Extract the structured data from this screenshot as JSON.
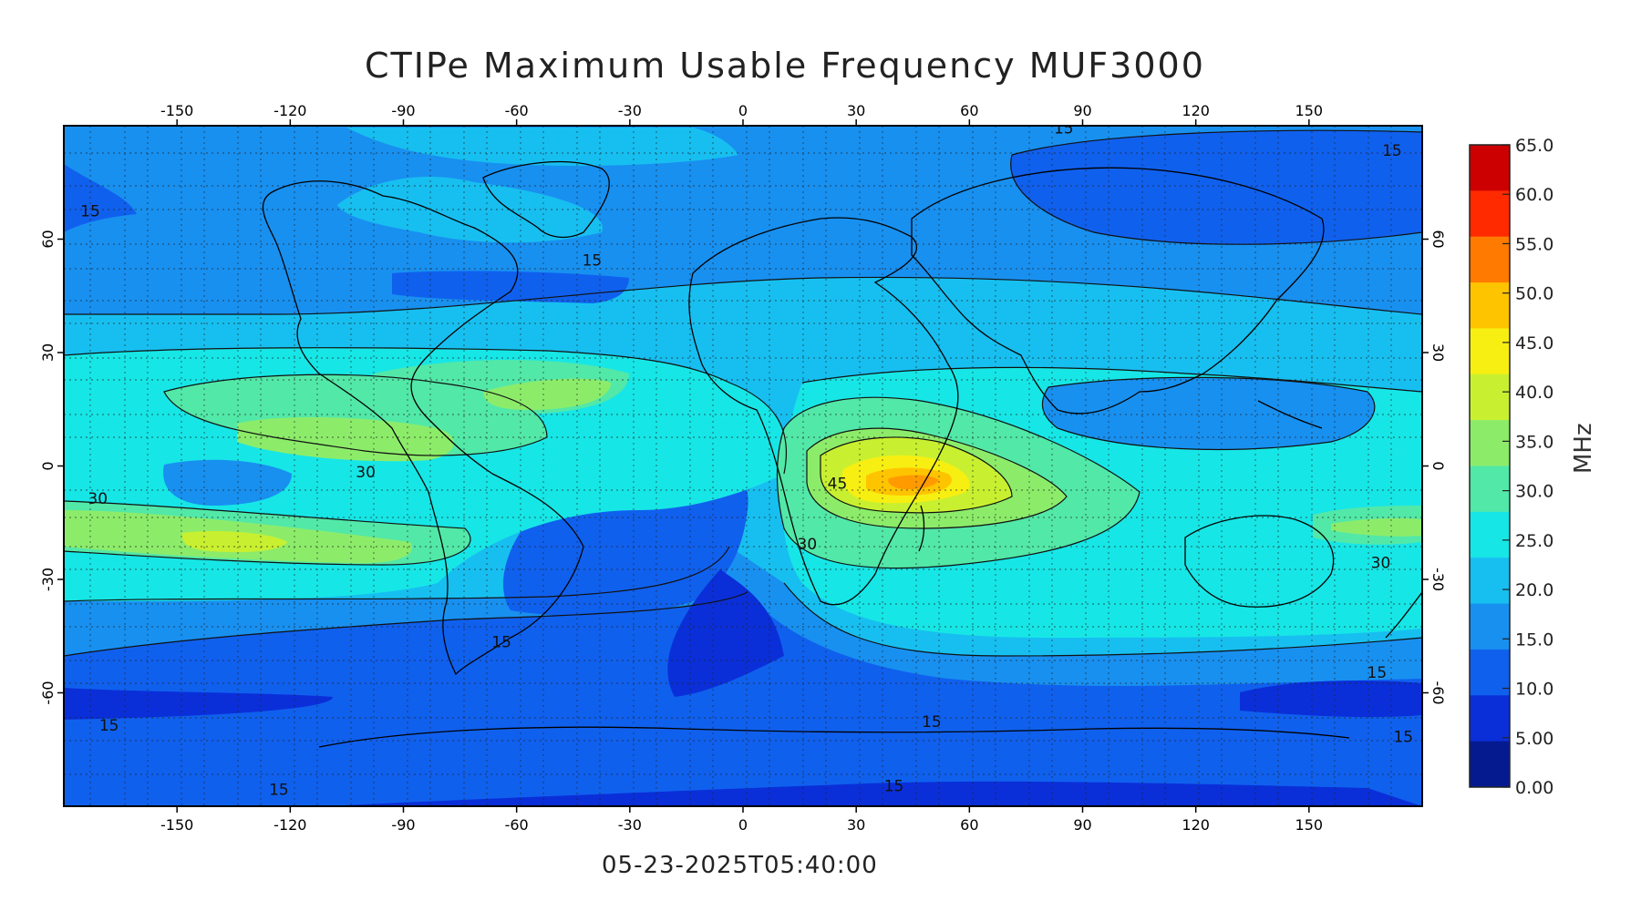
{
  "title": "CTIPe Maximum Usable Frequency MUF3000",
  "timestamp": "05-23-2025T05:40:00",
  "colorbar": {
    "unit": "MHz",
    "ticks": [
      "65.0",
      "60.0",
      "55.0",
      "50.0",
      "45.0",
      "40.0",
      "35.0",
      "30.0",
      "25.0",
      "20.0",
      "15.0",
      "10.0",
      "5.00",
      "0.00"
    ],
    "stops": [
      "#cc0000",
      "#ff2a00",
      "#ff7a00",
      "#ffc400",
      "#f7ef12",
      "#c8f030",
      "#8cec6a",
      "#52e8a8",
      "#17e6e6",
      "#17bff0",
      "#1890f0",
      "#1060ee",
      "#0a2fd8",
      "#061a8f"
    ]
  },
  "map": {
    "lon_ticks": [
      "-150",
      "-120",
      "-90",
      "-60",
      "-30",
      "0",
      "30",
      "60",
      "90",
      "120",
      "150"
    ],
    "lat_ticks": [
      "60",
      "30",
      "0",
      "-30",
      "-60"
    ],
    "contour_labels": [
      {
        "text": "15",
        "lon": -173,
        "lat": 66
      },
      {
        "text": "15",
        "lon": -40,
        "lat": 53
      },
      {
        "text": "15",
        "lon": 85,
        "lat": 88
      },
      {
        "text": "15",
        "lon": 172,
        "lat": 82
      },
      {
        "text": "30",
        "lon": -100,
        "lat": -3
      },
      {
        "text": "30",
        "lon": -171,
        "lat": -10
      },
      {
        "text": "45",
        "lon": 25,
        "lat": -6
      },
      {
        "text": "30",
        "lon": 17,
        "lat": -22
      },
      {
        "text": "30",
        "lon": 169,
        "lat": -27
      },
      {
        "text": "15",
        "lon": -64,
        "lat": -48
      },
      {
        "text": "15",
        "lon": -168,
        "lat": -70
      },
      {
        "text": "15",
        "lon": 168,
        "lat": -56
      },
      {
        "text": "15",
        "lon": 50,
        "lat": -69
      },
      {
        "text": "15",
        "lon": 175,
        "lat": -73
      },
      {
        "text": "15",
        "lon": -123,
        "lat": -87
      },
      {
        "text": "15",
        "lon": 40,
        "lat": -86
      }
    ]
  }
}
